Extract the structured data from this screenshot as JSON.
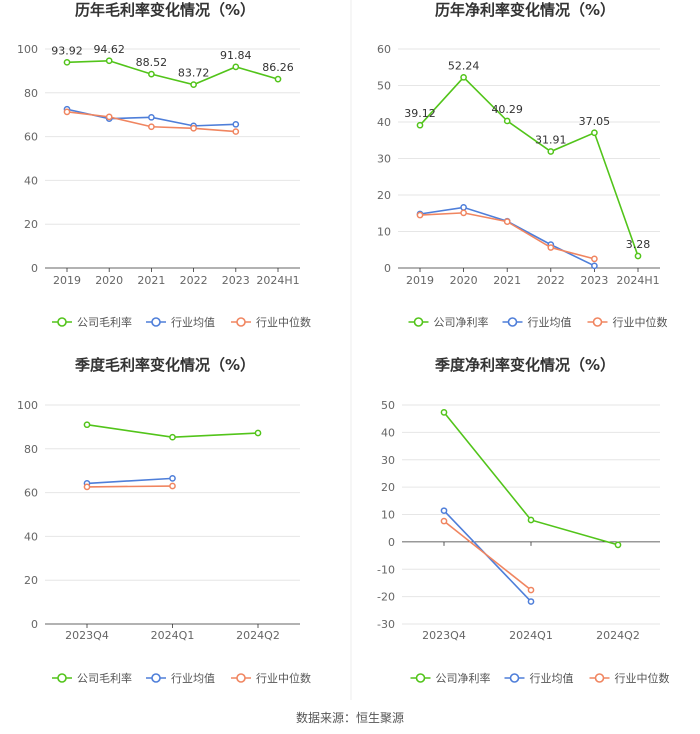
{
  "source_text": "数据来源：恒生聚源",
  "colors": {
    "company": "#52c41a",
    "avg": "#4e7ed9",
    "median": "#f08560",
    "grid": "#e6e6e6",
    "axis": "#333333"
  },
  "chart_data": [
    {
      "type": "line",
      "title": "历年毛利率变化情况（%）",
      "categories": [
        "2019",
        "2020",
        "2021",
        "2022",
        "2023",
        "2024H1"
      ],
      "ylim": [
        0,
        100
      ],
      "yticks": [
        "0",
        "20",
        "40",
        "60",
        "80",
        "100"
      ],
      "series": [
        {
          "name": "公司毛利率",
          "color": "#52c41a",
          "values": [
            93.92,
            94.62,
            88.52,
            83.72,
            91.84,
            86.26
          ],
          "labels": [
            "93.92",
            "94.62",
            "88.52",
            "83.72",
            "91.84",
            "86.26"
          ]
        },
        {
          "name": "行业均值",
          "color": "#4e7ed9",
          "values": [
            72.5,
            68.2,
            68.8,
            64.9,
            65.6,
            null
          ],
          "labels": []
        },
        {
          "name": "行业中位数",
          "color": "#f08560",
          "values": [
            71.3,
            69.0,
            64.5,
            63.8,
            62.3,
            null
          ],
          "labels": []
        }
      ]
    },
    {
      "type": "line",
      "title": "历年净利率变化情况（%）",
      "categories": [
        "2019",
        "2020",
        "2021",
        "2022",
        "2023",
        "2024H1"
      ],
      "ylim": [
        0,
        60
      ],
      "yticks": [
        "0",
        "10",
        "20",
        "30",
        "40",
        "50",
        "60"
      ],
      "series": [
        {
          "name": "公司净利率",
          "color": "#52c41a",
          "values": [
            39.12,
            52.24,
            40.29,
            31.91,
            37.05,
            3.28
          ],
          "labels": [
            "39.12",
            "52.24",
            "40.29",
            "31.91",
            "37.05",
            "3.28"
          ]
        },
        {
          "name": "行业均值",
          "color": "#4e7ed9",
          "values": [
            14.8,
            16.6,
            12.8,
            6.4,
            0.6,
            null
          ],
          "labels": []
        },
        {
          "name": "行业中位数",
          "color": "#f08560",
          "values": [
            14.5,
            15.1,
            12.7,
            5.6,
            2.5,
            null
          ],
          "labels": []
        }
      ]
    },
    {
      "type": "line",
      "title": "季度毛利率变化情况（%）",
      "categories": [
        "2023Q4",
        "2024Q1",
        "2024Q2"
      ],
      "ylim": [
        0,
        100
      ],
      "yticks": [
        "0",
        "20",
        "40",
        "60",
        "80",
        "100"
      ],
      "series": [
        {
          "name": "公司毛利率",
          "color": "#52c41a",
          "values": [
            91.0,
            85.3,
            87.2
          ],
          "labels": []
        },
        {
          "name": "行业均值",
          "color": "#4e7ed9",
          "values": [
            64.2,
            66.5,
            null
          ],
          "labels": []
        },
        {
          "name": "行业中位数",
          "color": "#f08560",
          "values": [
            62.6,
            63.0,
            null
          ],
          "labels": []
        }
      ]
    },
    {
      "type": "line",
      "title": "季度净利率变化情况（%）",
      "categories": [
        "2023Q4",
        "2024Q1",
        "2024Q2"
      ],
      "ylim": [
        -30,
        50
      ],
      "yticks": [
        "-30",
        "-20",
        "-10",
        "0",
        "10",
        "20",
        "30",
        "40",
        "50"
      ],
      "series": [
        {
          "name": "公司净利率",
          "color": "#52c41a",
          "values": [
            47.3,
            8.0,
            -1.1
          ],
          "labels": []
        },
        {
          "name": "行业均值",
          "color": "#4e7ed9",
          "values": [
            11.4,
            -21.8,
            null
          ],
          "labels": []
        },
        {
          "name": "行业中位数",
          "color": "#f08560",
          "values": [
            7.6,
            -17.6,
            null
          ],
          "labels": []
        }
      ]
    }
  ]
}
